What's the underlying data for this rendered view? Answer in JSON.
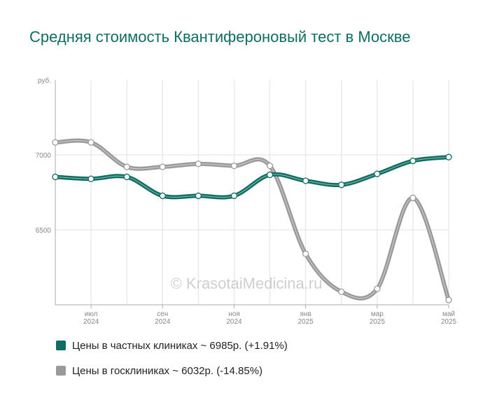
{
  "title": "Средняя стоимость Квантифероновый тест в Москве",
  "watermark": "© KrasotaiMedicina.ru",
  "chart_data": {
    "type": "line",
    "title": "Средняя стоимость Квантифероновый тест в Москве",
    "ylabel": "руб.",
    "ylim": [
      6000,
      7500
    ],
    "yticks": [
      6500,
      7000
    ],
    "x": [
      "2024-06",
      "2024-07",
      "2024-08",
      "2024-09",
      "2024-10",
      "2024-11",
      "2024-12",
      "2025-01",
      "2025-02",
      "2025-03",
      "2025-04",
      "2025-05"
    ],
    "xticks": [
      {
        "month": "июл",
        "year": "2024",
        "x": "2024-07"
      },
      {
        "month": "сен",
        "year": "2024",
        "x": "2024-09"
      },
      {
        "month": "ноя",
        "year": "2024",
        "x": "2024-11"
      },
      {
        "month": "янв",
        "year": "2025",
        "x": "2025-01"
      },
      {
        "month": "мар",
        "year": "2025",
        "x": "2025-03"
      },
      {
        "month": "май",
        "year": "2025",
        "x": "2025-05"
      }
    ],
    "grid": true,
    "legend_position": "bottom",
    "series": [
      {
        "name": "Цены в частных клиниках ~ 6985р. (+1.91%)",
        "color": "#0f6e63",
        "values": [
          6853,
          6840,
          6853,
          6727,
          6727,
          6727,
          6867,
          6827,
          6800,
          6873,
          6960,
          6985
        ]
      },
      {
        "name": "Цены в госклиниках ~ 6032р. (-14.85%)",
        "color": "#9a9a9a",
        "values": [
          7083,
          7083,
          6920,
          6920,
          6940,
          6927,
          6927,
          6340,
          6087,
          6107,
          6713,
          6032
        ]
      }
    ]
  }
}
